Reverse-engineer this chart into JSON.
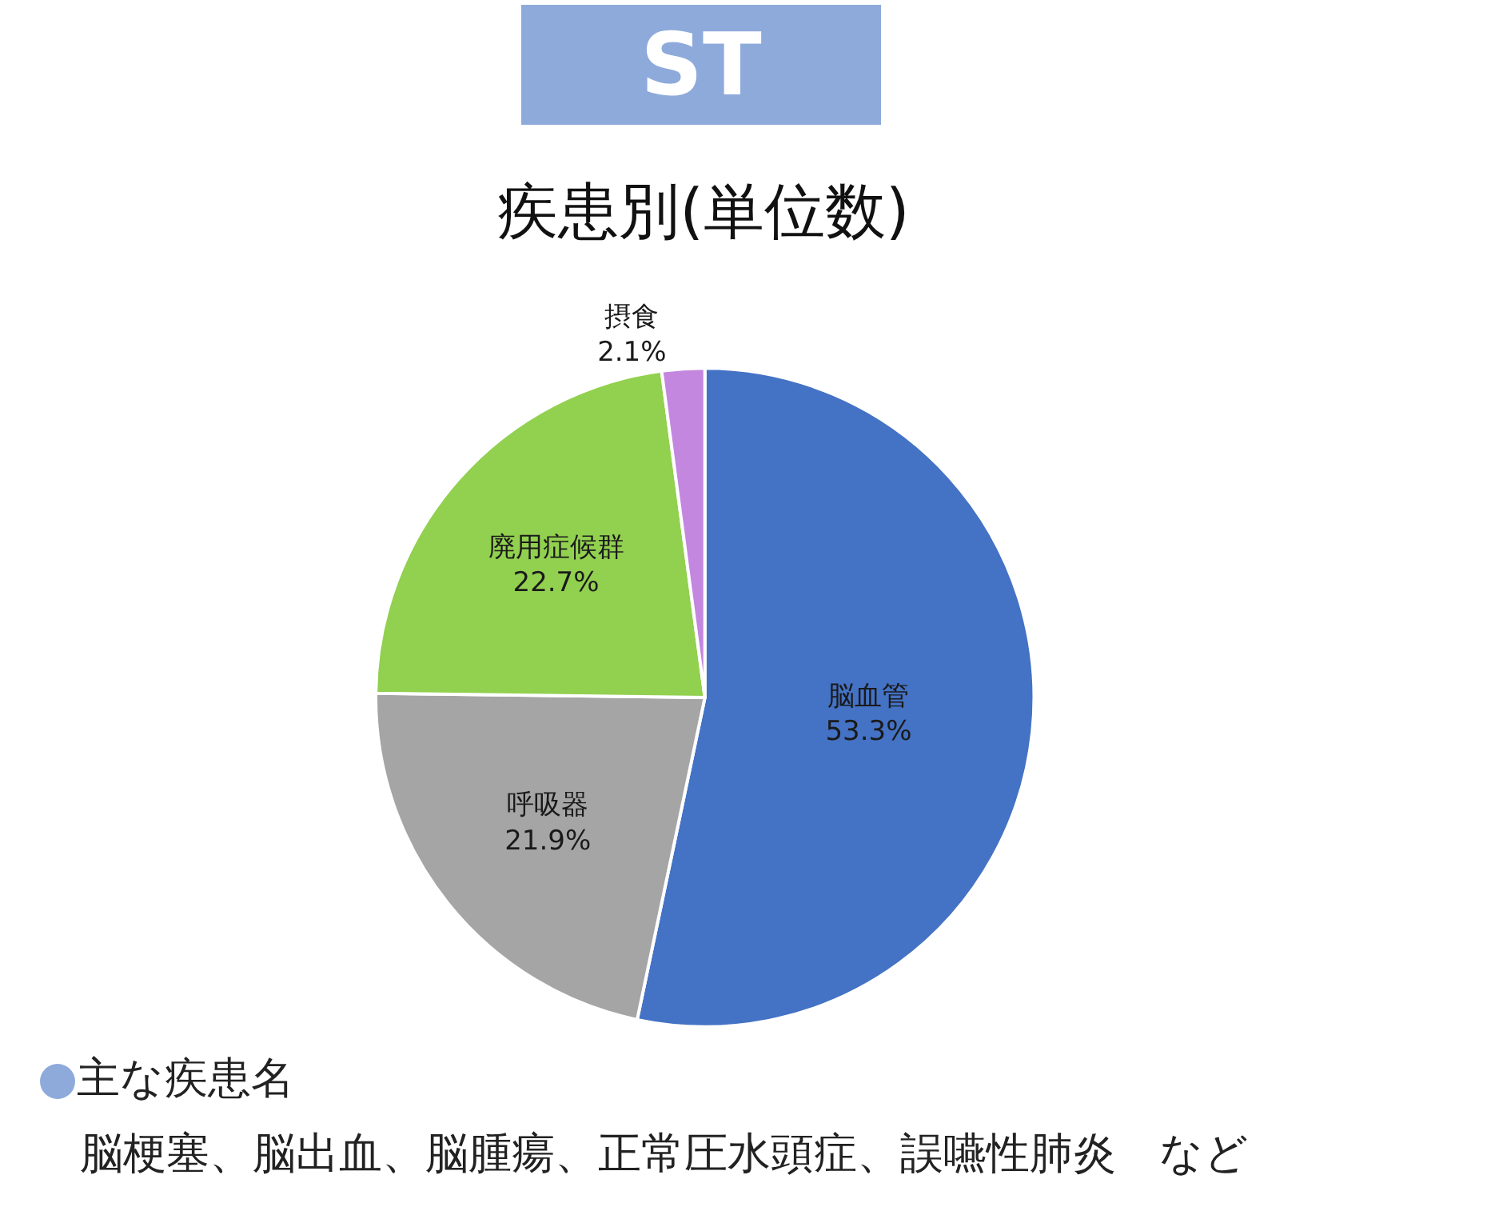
{
  "chart_data": {
    "type": "pie",
    "title": "ST",
    "subtitle": "疾患別(単位数)",
    "categories": [
      "脳血管",
      "呼吸器",
      "廃用症候群",
      "摂食"
    ],
    "values": [
      53.3,
      21.9,
      22.7,
      2.1
    ],
    "value_labels": [
      "53.3%",
      "21.9%",
      "22.7%",
      "2.1%"
    ],
    "colors": [
      "#4472c4",
      "#a5a5a5",
      "#92d050",
      "#c387e0"
    ],
    "legend": false,
    "annotations": [
      "主な疾患名",
      "脳梗塞、脳出血、脳腫瘍、正常圧水頭症、誤嚥性肺炎　など"
    ]
  }
}
